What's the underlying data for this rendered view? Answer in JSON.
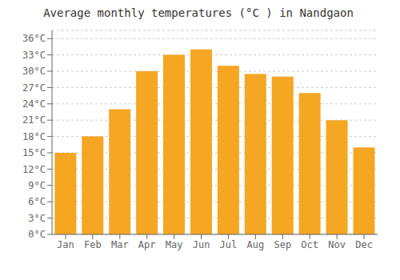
{
  "chart_data": {
    "type": "bar",
    "title": "Average monthly temperatures (°C ) in Nandgaon",
    "categories": [
      "Jan",
      "Feb",
      "Mar",
      "Apr",
      "May",
      "Jun",
      "Jul",
      "Aug",
      "Sep",
      "Oct",
      "Nov",
      "Dec"
    ],
    "values": [
      15,
      18,
      23,
      30,
      33,
      34,
      31,
      29.5,
      29,
      26,
      21,
      16
    ],
    "color": "#F5A623",
    "ylim": [
      0,
      37.5
    ],
    "yticks": [
      {
        "value": 0,
        "label": "0°C"
      },
      {
        "value": 3,
        "label": "3°C"
      },
      {
        "value": 6,
        "label": "6°C"
      },
      {
        "value": 9,
        "label": "9°C"
      },
      {
        "value": 12,
        "label": "12°C"
      },
      {
        "value": 15,
        "label": "15°C"
      },
      {
        "value": 18,
        "label": "18°C"
      },
      {
        "value": 21,
        "label": "21°C"
      },
      {
        "value": 24,
        "label": "24°C"
      },
      {
        "value": 27,
        "label": "27°C"
      },
      {
        "value": 30,
        "label": "30°C"
      },
      {
        "value": 33,
        "label": "33°C"
      },
      {
        "value": 36,
        "label": "36°C"
      }
    ],
    "grid": true
  }
}
